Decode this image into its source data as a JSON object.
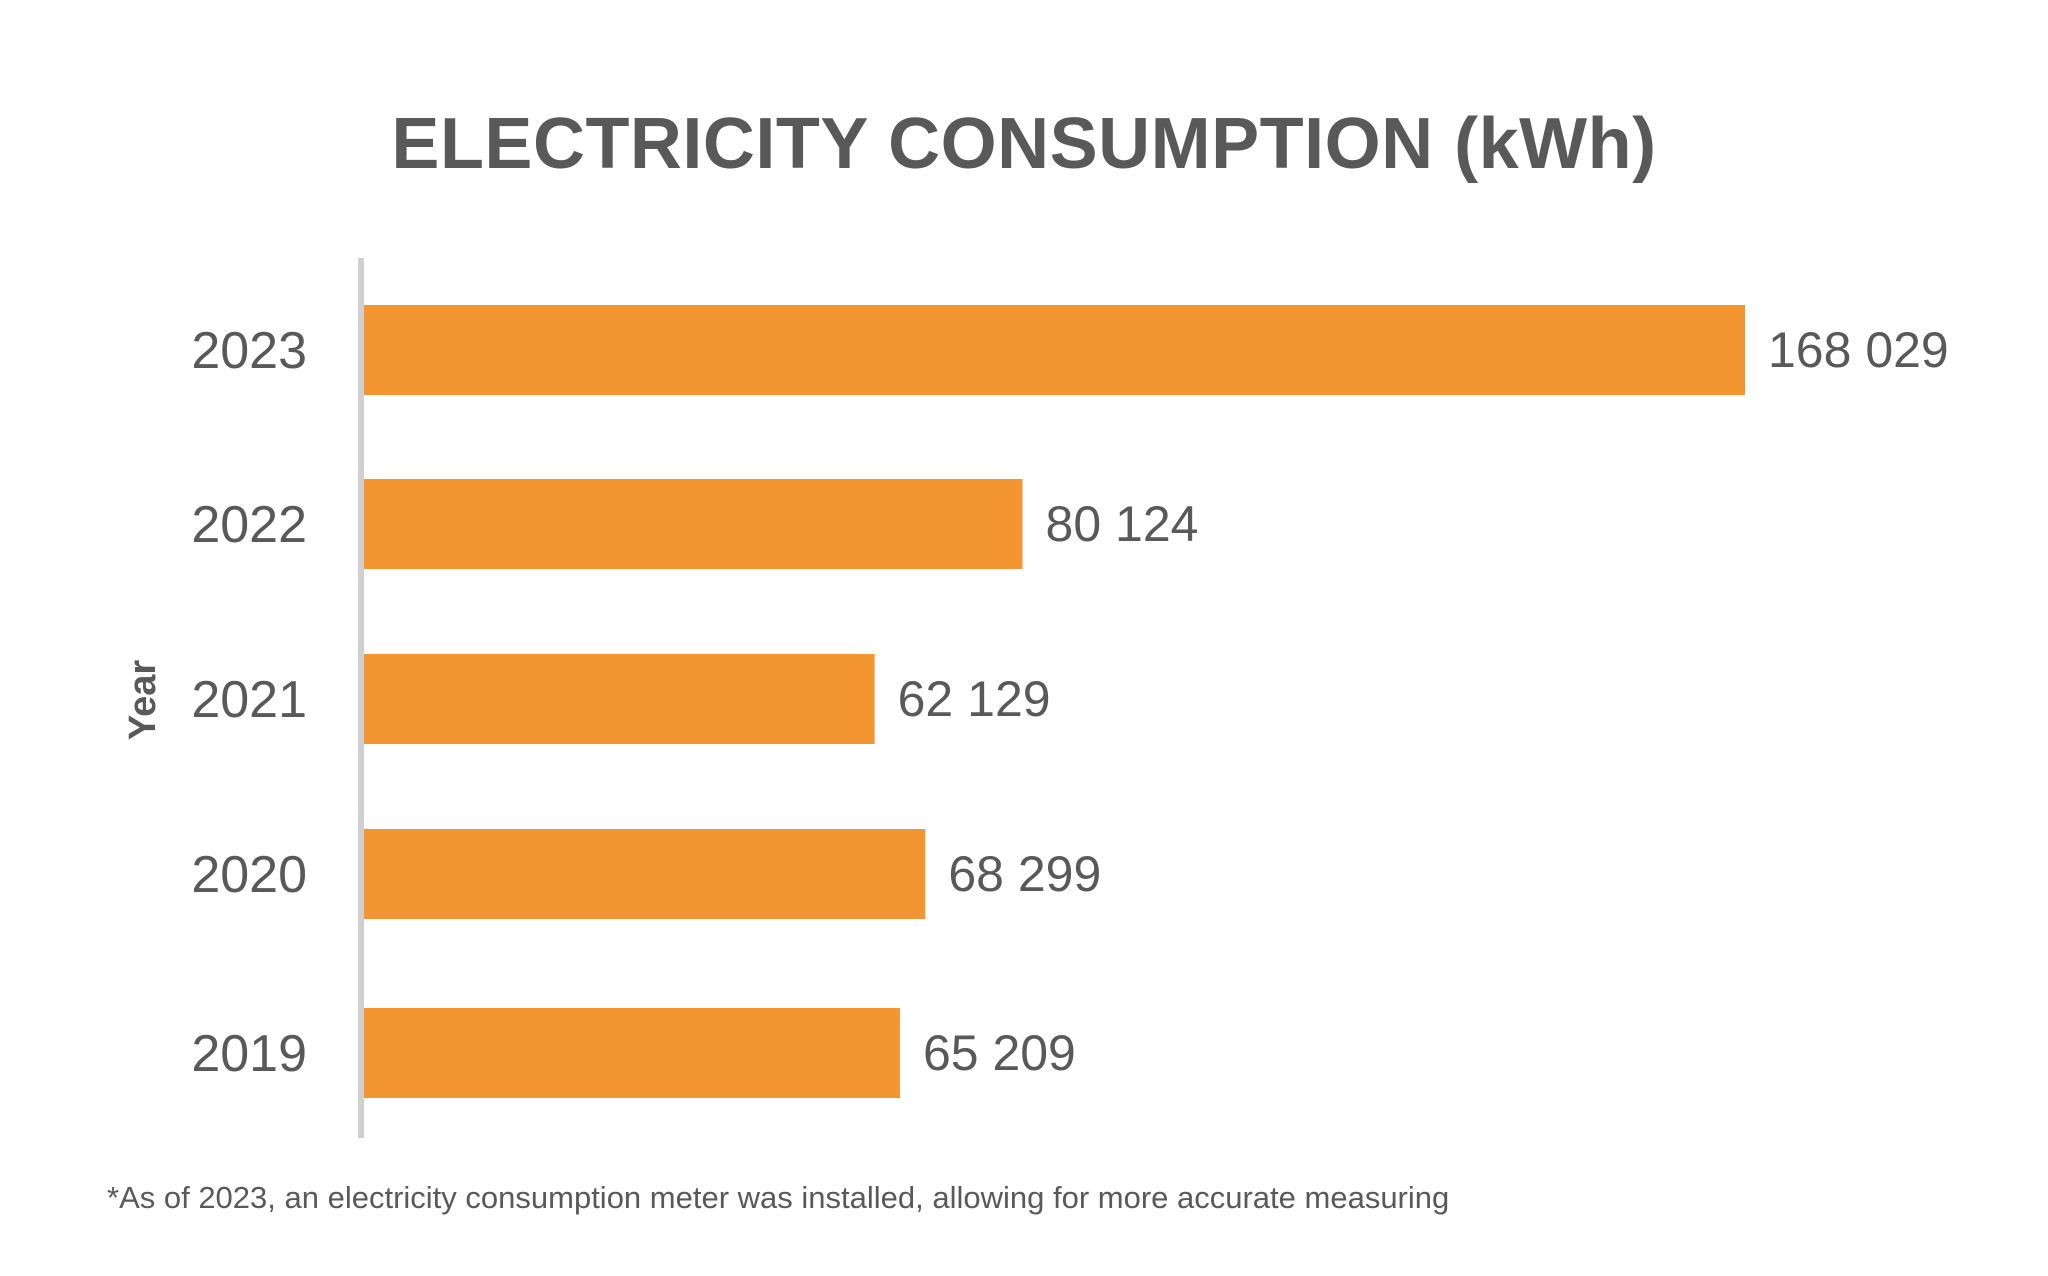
{
  "chart_data": {
    "type": "bar",
    "orientation": "horizontal",
    "title": "ELECTRICITY CONSUMPTION (kWh)",
    "ylabel": "Year",
    "xlabel": "",
    "categories": [
      "2023",
      "2022",
      "2021",
      "2020",
      "2019"
    ],
    "values": [
      168029,
      80124,
      62129,
      68299,
      65209
    ],
    "value_labels": [
      "168 029",
      "80 124",
      "62 129",
      "68 299",
      "65 209"
    ],
    "xlim": [
      0,
      168029
    ],
    "grid": false,
    "legend": "none",
    "bar_color": "#F39530",
    "axis_color": "#D0D0D0",
    "text_color": "#595959"
  },
  "footnote": "*As of 2023, an electricity consumption meter was installed, allowing for more accurate measuring"
}
